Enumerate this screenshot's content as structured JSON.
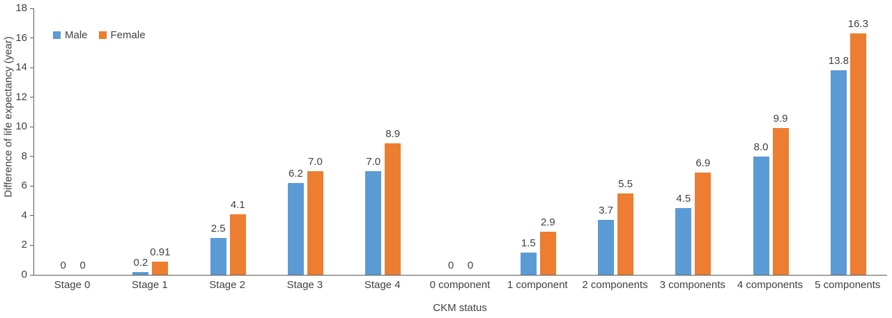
{
  "chart_data": {
    "type": "bar",
    "title": "",
    "xlabel": "CKM status",
    "ylabel": "Difference of life expectancy (year)",
    "ylim": [
      0,
      18
    ],
    "ytick_step": 2,
    "grid": false,
    "legend_position": "top-left",
    "categories": [
      "Stage 0",
      "Stage 1",
      "Stage 2",
      "Stage 3",
      "Stage 4",
      "0 component",
      "1 component",
      "2 components",
      "3 components",
      "4 components",
      "5 components"
    ],
    "series": [
      {
        "name": "Male",
        "color": "#5B9BD5",
        "values": [
          0,
          0.2,
          2.5,
          6.2,
          7.0,
          0,
          1.5,
          3.7,
          4.5,
          8.0,
          13.8
        ],
        "labels": [
          "0",
          "0.2",
          "2.5",
          "6.2",
          "7.0",
          "0",
          "1.5",
          "3.7",
          "4.5",
          "8.0",
          "13.8"
        ]
      },
      {
        "name": "Female",
        "color": "#ED7D31",
        "values": [
          0,
          0.91,
          4.1,
          7.0,
          8.9,
          0,
          2.9,
          5.5,
          6.9,
          9.9,
          16.3
        ],
        "labels": [
          "0",
          "0.91",
          "4.1",
          "7.0",
          "8.9",
          "0",
          "2.9",
          "5.5",
          "6.9",
          "9.9",
          "16.3"
        ]
      }
    ]
  }
}
